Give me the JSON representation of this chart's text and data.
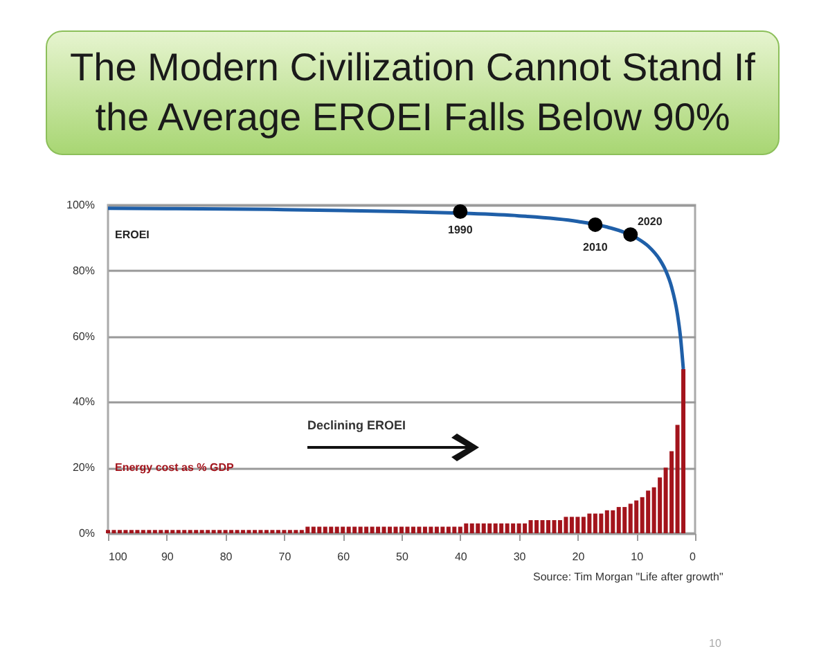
{
  "chart_data": {
    "type": "bar",
    "title": "The Modern Civilization Cannot Stand If the Average EROEI Falls Below 90%",
    "xlim": [
      100,
      0
    ],
    "xticks": [
      100,
      90,
      80,
      70,
      60,
      50,
      40,
      30,
      20,
      10,
      0
    ],
    "ylim": [
      0,
      100
    ],
    "yticks": [
      {
        "value": 0,
        "label": "0%"
      },
      {
        "value": 20,
        "label": "20%"
      },
      {
        "value": 40,
        "label": "40%"
      },
      {
        "value": 60,
        "label": "60%"
      },
      {
        "value": 80,
        "label": "80%"
      },
      {
        "value": 100,
        "label": "100%"
      }
    ],
    "grid": "y",
    "annotations": [
      "Declining EROEI",
      "Source: Tim Morgan \"Life after growth\"",
      "10",
      {
        "text": "1990",
        "x": 40,
        "y": 98
      },
      {
        "text": "2010",
        "x": 17,
        "y": 94
      },
      {
        "text": "2020",
        "x": 11,
        "y": 91
      }
    ],
    "series": [
      {
        "name": "Energy cost as % GDP",
        "color": "#a3141c",
        "x": [
          100,
          99,
          98,
          97,
          96,
          95,
          94,
          93,
          92,
          91,
          90,
          89,
          88,
          87,
          86,
          85,
          84,
          83,
          82,
          81,
          80,
          79,
          78,
          77,
          76,
          75,
          74,
          73,
          72,
          71,
          70,
          69,
          68,
          67,
          66,
          65,
          64,
          63,
          62,
          61,
          60,
          59,
          58,
          57,
          56,
          55,
          54,
          53,
          52,
          51,
          50,
          49,
          48,
          47,
          46,
          45,
          44,
          43,
          42,
          41,
          40,
          39,
          38,
          37,
          36,
          35,
          34,
          33,
          32,
          31,
          30,
          29,
          28,
          27,
          26,
          25,
          24,
          23,
          22,
          21,
          20,
          19,
          18,
          17,
          16,
          15,
          14,
          13,
          12,
          11,
          10,
          9,
          8,
          7,
          6,
          5,
          4,
          3,
          2
        ],
        "values": [
          1,
          1,
          1,
          1,
          1,
          1,
          1,
          1,
          1,
          1,
          1,
          1,
          1,
          1,
          1,
          1,
          1,
          1,
          1,
          1,
          1,
          1,
          1,
          1,
          1,
          1,
          1,
          1,
          1,
          1,
          1,
          1,
          1,
          1,
          2,
          2,
          2,
          2,
          2,
          2,
          2,
          2,
          2,
          2,
          2,
          2,
          2,
          2,
          2,
          2,
          2,
          2,
          2,
          2,
          2,
          2,
          2,
          2,
          2,
          2,
          2,
          3,
          3,
          3,
          3,
          3,
          3,
          3,
          3,
          3,
          3,
          3,
          4,
          4,
          4,
          4,
          4,
          4,
          5,
          5,
          5,
          5,
          6,
          6,
          6,
          7,
          7,
          8,
          8,
          9,
          10,
          11,
          13,
          14,
          17,
          20,
          25,
          33,
          50
        ]
      },
      {
        "name": "EROEI",
        "type": "line",
        "color": "#1f5fa8",
        "x": [
          100,
          90,
          80,
          70,
          60,
          50,
          40,
          30,
          20,
          15,
          10,
          8,
          6,
          5,
          4,
          3,
          2.5,
          2
        ],
        "values": [
          99,
          98.9,
          98.8,
          98.6,
          98.3,
          98,
          97.5,
          96.7,
          95,
          93.3,
          90,
          87.5,
          83.3,
          80,
          75,
          66.7,
          60,
          50
        ]
      },
      {
        "type": "scatter",
        "color": "#000000",
        "marker": "circle",
        "x": [
          40,
          17,
          11
        ],
        "values": [
          98,
          94,
          91
        ]
      }
    ]
  }
}
